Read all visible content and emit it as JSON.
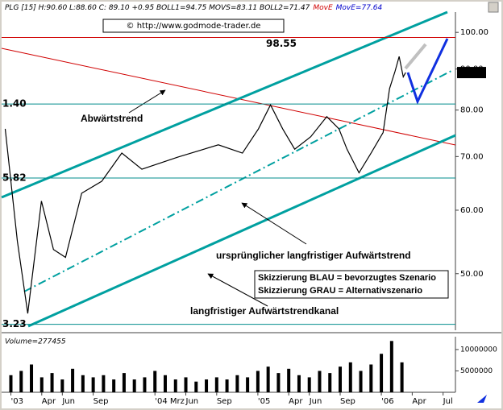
{
  "chart_data": [
    {
      "type": "line",
      "header": [
        {
          "text": "PLG [15] H:90.60 L:88.60 C: 89.10 +0.95 BOLL1=94.75 MOVS=83.11 BOLL2=71.47",
          "color": "#000000"
        },
        {
          "text": "MovE",
          "color": "#d00000"
        },
        {
          "text": "MovE=77.64",
          "color": "#0000cc"
        }
      ],
      "copyright": "© http://www.godmode-trader.de",
      "log_scale": true,
      "xlim": [
        -0.9,
        43.2
      ],
      "xticks": [
        {
          "value": 0,
          "label": "'03"
        },
        {
          "value": 3,
          "label": "Apr"
        },
        {
          "value": 5,
          "label": "Jun"
        },
        {
          "value": 8,
          "label": "Sep"
        },
        {
          "value": 14,
          "label": "'04 Mrz"
        },
        {
          "value": 17,
          "label": "Jun"
        },
        {
          "value": 20,
          "label": "Sep"
        },
        {
          "value": 24,
          "label": "'05"
        },
        {
          "value": 27,
          "label": "Apr"
        },
        {
          "value": 29,
          "label": "Jun"
        },
        {
          "value": 32,
          "label": "Sep"
        },
        {
          "value": 36,
          "label": "'06"
        },
        {
          "value": 39,
          "label": "Apr"
        },
        {
          "value": 42,
          "label": "Jul"
        }
      ],
      "ylim": [
        42.5,
        106
      ],
      "yticks": [
        {
          "value": 100,
          "label": "100.00"
        },
        {
          "value": 90,
          "label": "90.00"
        },
        {
          "value": 80,
          "label": "80.00"
        },
        {
          "value": 70,
          "label": "70.00"
        },
        {
          "value": 60,
          "label": "60.00"
        },
        {
          "value": 50,
          "label": "50.00"
        }
      ],
      "series": [
        {
          "color": "#000000",
          "x": [
            -0.55,
            0.63,
            1.64,
            2.97,
            4.14,
            5.31,
            6.88,
            8.83,
            10.78,
            12.73,
            16.25,
            20.16,
            22.5,
            24.06,
            25.23,
            26.41,
            27.58,
            29.14,
            30.7,
            31.88,
            32.66,
            33.83,
            35,
            36.17,
            36.8,
            37.34,
            37.73,
            38.13,
            38.36
          ],
          "values": [
            75.8,
            54.9,
            44.6,
            61.6,
            53.6,
            52.4,
            63.0,
            65.2,
            70.7,
            67.5,
            69.9,
            72.4,
            70.7,
            75.8,
            81.2,
            75.8,
            71.5,
            74.1,
            78.5,
            75.8,
            71.5,
            66.8,
            70.7,
            75.0,
            85.1,
            89.5,
            93.3,
            88.0,
            89.1
          ]
        }
      ],
      "levels": [
        {
          "value": 98.55,
          "label": "98.55",
          "color": "#d00000"
        },
        {
          "value": 81.4,
          "label": "1.40",
          "color": "#008c8c"
        },
        {
          "value": 65.82,
          "label": "5.82",
          "color": "#008c8c"
        },
        {
          "value": 43.23,
          "label": "3.23",
          "color": "#008c8c"
        }
      ],
      "last_price": {
        "value": 89.1,
        "label": "89.10"
      },
      "annotations": [
        "Abwärtstrend",
        "ursprünglicher langfristiger Aufwärtstrend",
        "Skizzierung BLAU = bevorzugtes Szenario",
        "Skizzierung GRAU = Alternativszenario",
        "langfristiger Aufwärtstrendkanal"
      ]
    },
    {
      "type": "bar",
      "label": "Volume=277455",
      "color": "#000000",
      "ylim": [
        0,
        13000000
      ],
      "yticks": [
        10000000,
        5000000
      ],
      "x": [
        0,
        1,
        2,
        3,
        4,
        5,
        6,
        7,
        8,
        9,
        10,
        11,
        12,
        13,
        14,
        15,
        16,
        17,
        18,
        19,
        20,
        21,
        22,
        23,
        24,
        25,
        26,
        27,
        28,
        29,
        30,
        31,
        32,
        33,
        34,
        35,
        36,
        37,
        38
      ],
      "values": [
        4000000,
        5000000,
        6500000,
        3500000,
        4500000,
        3000000,
        5500000,
        4000000,
        3500000,
        4000000,
        3000000,
        4500000,
        3000000,
        3500000,
        5000000,
        4000000,
        3000000,
        3500000,
        2500000,
        3000000,
        3500000,
        3000000,
        4000000,
        3500000,
        5000000,
        6000000,
        4500000,
        5500000,
        4000000,
        3500000,
        5000000,
        4500000,
        6000000,
        7000000,
        5000000,
        6500000,
        9000000,
        12000000,
        7000000
      ]
    }
  ]
}
